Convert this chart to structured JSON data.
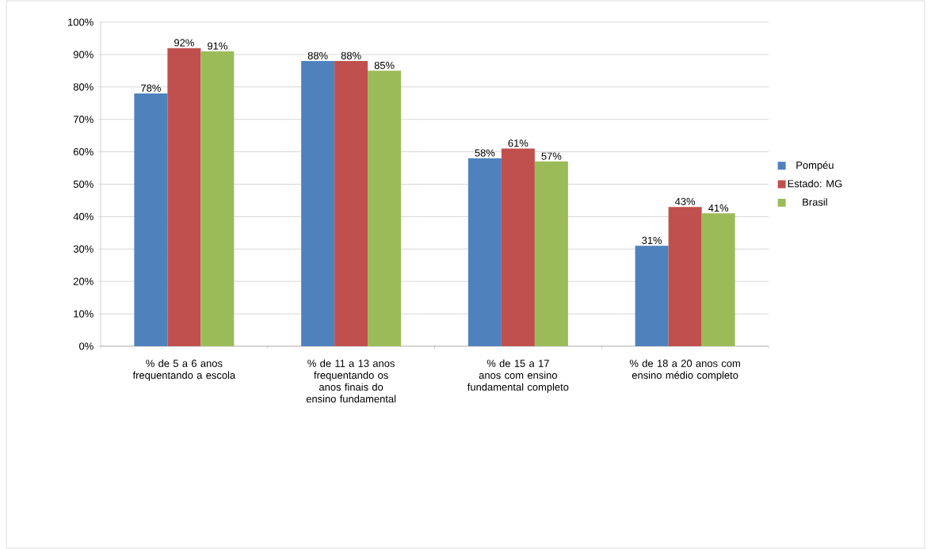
{
  "chart_data": {
    "type": "bar",
    "categories": [
      "% de 5 a 6 anos frequentando a escola",
      "% de 11 a 13 anos frequentando os anos finais do ensino fundamental",
      "% de 15 a 17 anos com ensino fundamental completo",
      "% de 18 a 20 anos com ensino médio completo"
    ],
    "series": [
      {
        "name": "Pompéu",
        "color": "#4f81bd",
        "values": [
          78,
          88,
          58,
          31
        ],
        "value_labels": [
          "78%",
          "88%",
          "58%",
          "31%"
        ]
      },
      {
        "name": "Estado: MG",
        "color": "#c0504d",
        "values": [
          92,
          88,
          61,
          43
        ],
        "value_labels": [
          "92%",
          "88%",
          "61%",
          "43%"
        ]
      },
      {
        "name": "Brasil",
        "color": "#9bbb59",
        "values": [
          91,
          85,
          57,
          41
        ],
        "value_labels": [
          "91%",
          "85%",
          "57%",
          "41%"
        ]
      }
    ],
    "ylim": [
      0,
      100
    ],
    "yticks": [
      {
        "value": 0,
        "label": "0%"
      },
      {
        "value": 10,
        "label": "10%"
      },
      {
        "value": 20,
        "label": "20%"
      },
      {
        "value": 30,
        "label": "30%"
      },
      {
        "value": 40,
        "label": "40%"
      },
      {
        "value": 50,
        "label": "50%"
      },
      {
        "value": 60,
        "label": "60%"
      },
      {
        "value": 70,
        "label": "70%"
      },
      {
        "value": 80,
        "label": "80%"
      },
      {
        "value": 90,
        "label": "90%"
      },
      {
        "value": 100,
        "label": "100%"
      }
    ],
    "grid": "y",
    "legend": "right"
  }
}
